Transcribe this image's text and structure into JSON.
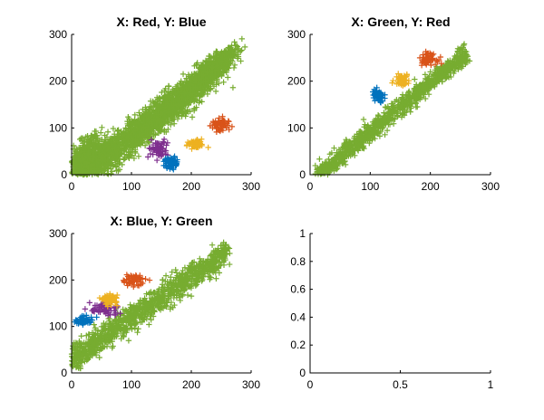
{
  "figure": {
    "colors": {
      "blue": "#0072BD",
      "orange": "#D95319",
      "yellow": "#EDB120",
      "purple": "#7E2F8E",
      "green": "#77AC30"
    }
  },
  "chart_data": [
    {
      "type": "scatter",
      "title": "X: Red, Y: Blue",
      "xlim": [
        0,
        300
      ],
      "ylim": [
        0,
        300
      ],
      "xticks": [
        "0",
        "100",
        "200",
        "300"
      ],
      "yticks": [
        "0",
        "100",
        "200",
        "300"
      ],
      "marker": "+",
      "clusters": [
        {
          "color": "green",
          "center": [
            60,
            40
          ],
          "spread": [
            40,
            18
          ]
        },
        {
          "color": "green",
          "center": [
            120,
            100
          ],
          "spread": [
            40,
            18
          ]
        },
        {
          "color": "green",
          "center": [
            180,
            160
          ],
          "spread": [
            35,
            18
          ]
        },
        {
          "color": "green",
          "center": [
            235,
            225
          ],
          "spread": [
            20,
            12
          ]
        },
        {
          "color": "green",
          "center": [
            20,
            30
          ],
          "spread": [
            15,
            20
          ]
        },
        {
          "color": "purple",
          "center": [
            145,
            55
          ],
          "spread": [
            8,
            10
          ]
        },
        {
          "color": "blue",
          "center": [
            167,
            25
          ],
          "spread": [
            6,
            6
          ]
        },
        {
          "color": "yellow",
          "center": [
            207,
            65
          ],
          "spread": [
            7,
            5
          ]
        },
        {
          "color": "orange",
          "center": [
            248,
            105
          ],
          "spread": [
            7,
            8
          ]
        }
      ]
    },
    {
      "type": "scatter",
      "title": "X: Green, Y: Red",
      "xlim": [
        0,
        300
      ],
      "ylim": [
        0,
        300
      ],
      "xticks": [
        "0",
        "100",
        "200",
        "300"
      ],
      "yticks": [
        "0",
        "100",
        "200",
        "300"
      ],
      "marker": "+",
      "clusters": [
        {
          "color": "green",
          "diagonal": [
            10,
            260
          ],
          "offset": -15,
          "width": 10
        },
        {
          "color": "blue",
          "center": [
            113,
            168
          ],
          "spread": [
            5,
            7
          ]
        },
        {
          "color": "yellow",
          "center": [
            153,
            203
          ],
          "spread": [
            6,
            6
          ]
        },
        {
          "color": "orange",
          "center": [
            196,
            248
          ],
          "spread": [
            7,
            6
          ]
        }
      ]
    },
    {
      "type": "scatter",
      "title": "X: Blue, Y: Green",
      "xlim": [
        0,
        300
      ],
      "ylim": [
        0,
        300
      ],
      "xticks": [
        "0",
        "100",
        "200",
        "300"
      ],
      "yticks": [
        "0",
        "100",
        "200",
        "300"
      ],
      "marker": "+",
      "clusters": [
        {
          "color": "green",
          "diagonal": [
            0,
            260
          ],
          "offset": 30,
          "width": 14
        },
        {
          "color": "blue",
          "center": [
            22,
            113
          ],
          "spread": [
            8,
            4
          ]
        },
        {
          "color": "purple",
          "center": [
            55,
            137
          ],
          "spread": [
            12,
            9
          ]
        },
        {
          "color": "yellow",
          "center": [
            65,
            157
          ],
          "spread": [
            6,
            5
          ]
        },
        {
          "color": "orange",
          "center": [
            103,
            200
          ],
          "spread": [
            10,
            6
          ]
        }
      ]
    },
    {
      "type": "scatter",
      "title": "",
      "xlim": [
        0,
        1
      ],
      "ylim": [
        0,
        1
      ],
      "xticks": [
        "0",
        "0.5",
        "1"
      ],
      "yticks": [
        "0",
        "0.2",
        "0.4",
        "0.6",
        "0.8",
        "1"
      ],
      "clusters": []
    }
  ]
}
